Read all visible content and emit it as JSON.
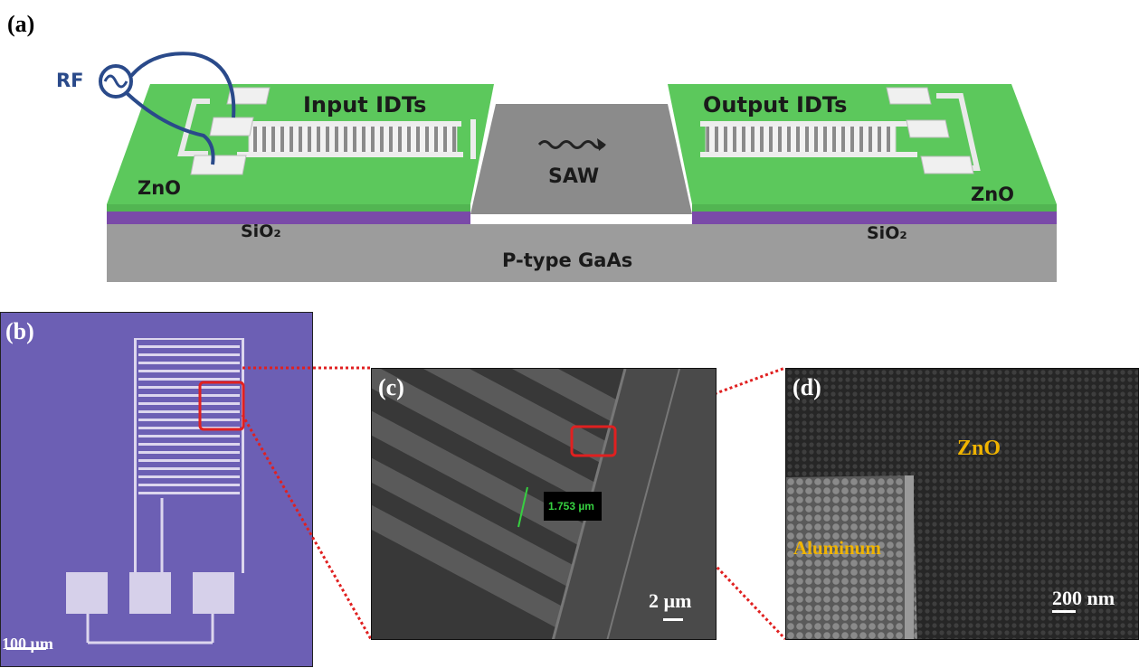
{
  "panel_a": {
    "label": "(a)",
    "rf": "RF",
    "input_idts": "Input IDTs",
    "output_idts": "Output IDTs",
    "saw": "SAW",
    "zno_left": "ZnO",
    "zno_right": "ZnO",
    "sio2_left": "SiO₂",
    "sio2_right": "SiO₂",
    "substrate": "P-type GaAs",
    "colors": {
      "zno": "#5cc85c",
      "sio2": "#7a4aa8",
      "gaas": "#9c9c9c",
      "electrode": "#e9e9e9",
      "wire": "#2a4a8a"
    }
  },
  "panel_b": {
    "label": "(b)",
    "scale_bar": "100 µm",
    "background": "#6c5fb4"
  },
  "panel_c": {
    "label": "(c)",
    "measurement": "1.753 µm",
    "scale_bar": "2 µm"
  },
  "panel_d": {
    "label": "(d)",
    "zno": "ZnO",
    "aluminum": "Aluminum",
    "scale_bar": "200 nm",
    "label_color": "#f0b400"
  }
}
